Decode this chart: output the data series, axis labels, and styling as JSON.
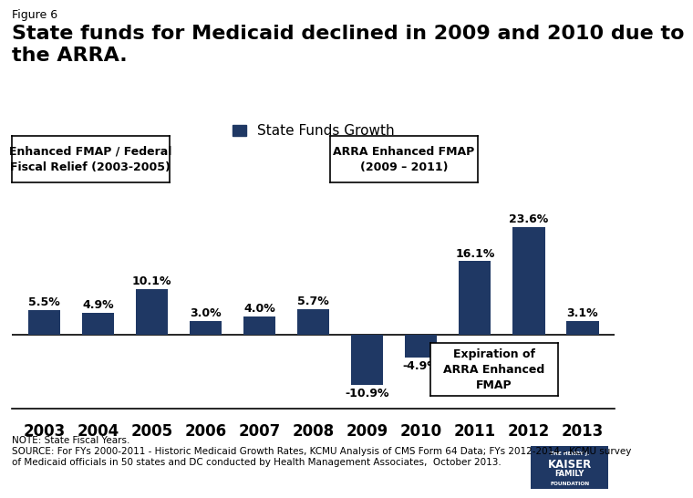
{
  "figure_label": "Figure 6",
  "title": "State funds for Medicaid declined in 2009 and 2010 due to\nthe ARRA.",
  "legend_label": "State Funds Growth",
  "categories": [
    "2003",
    "2004",
    "2005",
    "2006",
    "2007",
    "2008",
    "2009",
    "2010",
    "2011",
    "2012",
    "2013"
  ],
  "values": [
    5.5,
    4.9,
    10.1,
    3.0,
    4.0,
    5.7,
    -10.9,
    -4.9,
    16.1,
    23.6,
    3.1
  ],
  "bar_color": "#1f3864",
  "ylim": [
    -16,
    30
  ],
  "note_text": "NOTE: State Fiscal Years.\nSOURCE: For FYs 2000-2011 - Historic Medicaid Growth Rates, KCMU Analysis of CMS Form 64 Data; FYs 2012-2014 - KCMU survey\nof Medicaid officials in 50 states and DC conducted by Health Management Associates,  October 2013.",
  "box1_text": "Enhanced FMAP / Federal\nFiscal Relief (2003-2005)",
  "box2_text": "ARRA Enhanced FMAP\n(2009 – 2011)",
  "box3_text": "Expiration of\nARRA Enhanced\nFMAP",
  "background_color": "#ffffff"
}
